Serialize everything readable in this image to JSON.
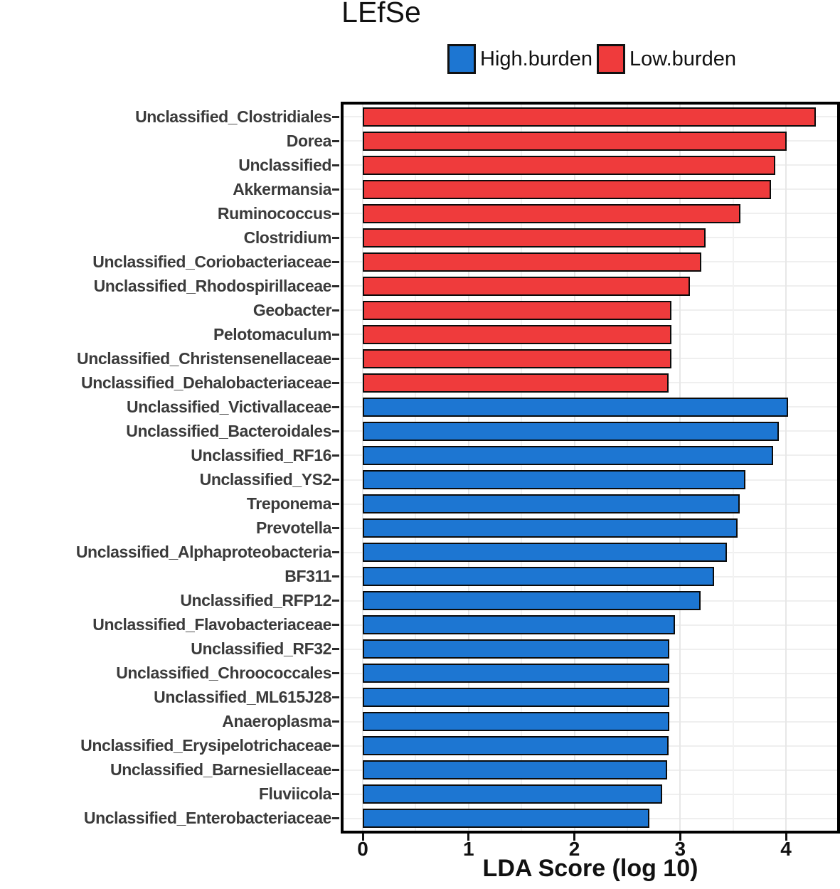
{
  "header": {
    "title": "LEfSe"
  },
  "x_axis": {
    "label": "LDA Score (log 10)",
    "tick_labels": [
      "0",
      "1",
      "2",
      "3",
      "4"
    ]
  },
  "chart_data": {
    "type": "bar",
    "orientation": "horizontal",
    "title": "LEfSe",
    "xlabel": "LDA Score (log 10)",
    "ylabel": "",
    "xlim": [
      -0.2,
      4.48
    ],
    "xticks": [
      0,
      1,
      2,
      3,
      4
    ],
    "minor_gridlines_every": 0.5,
    "grid": "on",
    "legend_position": "top",
    "legend": [
      {
        "label": "High.burden",
        "color": "#1D76D2"
      },
      {
        "label": "Low.burden",
        "color": "#EF3B3C"
      }
    ],
    "group_colors": {
      "High.burden": "#1D76D2",
      "Low.burden": "#EF3B3C"
    },
    "categories": [
      "Unclassified_Clostridiales",
      "Dorea",
      "Unclassified",
      "Akkermansia",
      "Ruminococcus",
      "Clostridium",
      "Unclassified_Coriobacteriaceae",
      "Unclassified_Rhodospirillaceae",
      "Geobacter",
      "Pelotomaculum",
      "Unclassified_Christensenellaceae",
      "Unclassified_Dehalobacteriaceae",
      "Unclassified_Victivallaceae",
      "Unclassified_Bacteroidales",
      "Unclassified_RF16",
      "Unclassified_YS2",
      "Treponema",
      "Prevotella",
      "Unclassified_Alphaproteobacteria",
      "BF311",
      "Unclassified_RFP12",
      "Unclassified_Flavobacteriaceae",
      "Unclassified_RF32",
      "Unclassified_Chroococcales",
      "Unclassified_ML615J28",
      "Anaeroplasma",
      "Unclassified_Erysipelotrichaceae",
      "Unclassified_Barnesiellaceae",
      "Fluviicola",
      "Unclassified_Enterobacteriaceae"
    ],
    "values": [
      4.28,
      4.01,
      3.9,
      3.86,
      3.57,
      3.24,
      3.2,
      3.09,
      2.92,
      2.92,
      2.92,
      2.89,
      4.02,
      3.93,
      3.88,
      3.62,
      3.56,
      3.54,
      3.44,
      3.32,
      3.19,
      2.95,
      2.9,
      2.9,
      2.9,
      2.9,
      2.89,
      2.88,
      2.83,
      2.71
    ],
    "groups": [
      "Low.burden",
      "Low.burden",
      "Low.burden",
      "Low.burden",
      "Low.burden",
      "Low.burden",
      "Low.burden",
      "Low.burden",
      "Low.burden",
      "Low.burden",
      "Low.burden",
      "Low.burden",
      "High.burden",
      "High.burden",
      "High.burden",
      "High.burden",
      "High.burden",
      "High.burden",
      "High.burden",
      "High.burden",
      "High.burden",
      "High.burden",
      "High.burden",
      "High.burden",
      "High.burden",
      "High.burden",
      "High.burden",
      "High.burden",
      "High.burden",
      "High.burden"
    ]
  }
}
